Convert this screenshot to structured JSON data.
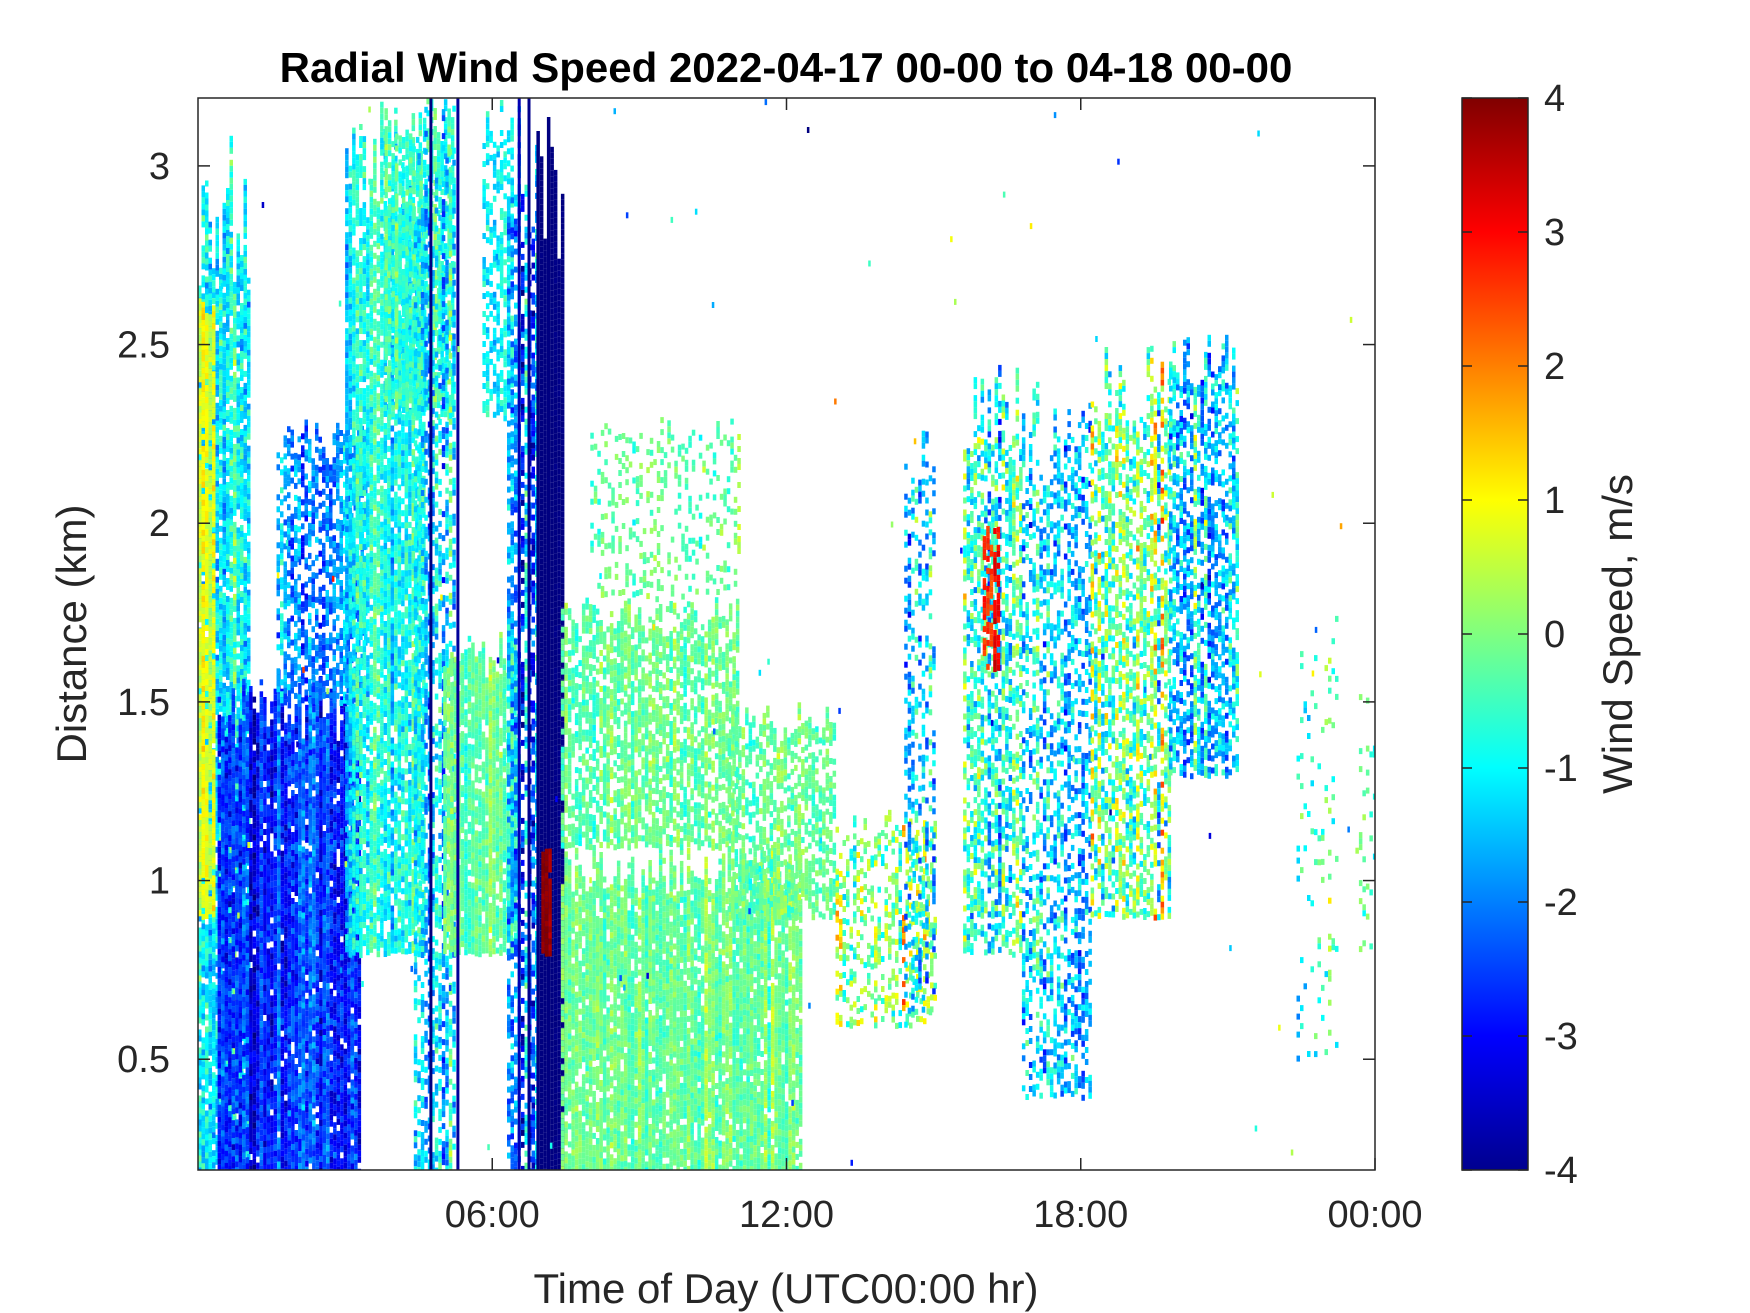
{
  "chart_data": {
    "type": "heatmap",
    "title": "Radial Wind Speed 2022-04-17 00-00 to 04-18 00-00",
    "xlabel": "Time of Day (UTC00:00 hr)",
    "ylabel": "Distance (km)",
    "colorbar_label": "Wind Speed, m/s",
    "colormap": "jet",
    "xlim": [
      0,
      24
    ],
    "ylim": [
      0.19,
      3.19
    ],
    "clim": [
      -4,
      4
    ],
    "x_ticks": [
      {
        "value": 6,
        "label": "06:00"
      },
      {
        "value": 12,
        "label": "12:00"
      },
      {
        "value": 18,
        "label": "18:00"
      },
      {
        "value": 24,
        "label": "00:00"
      }
    ],
    "y_ticks": [
      {
        "value": 0.5,
        "label": "0.5"
      },
      {
        "value": 1,
        "label": "1"
      },
      {
        "value": 1.5,
        "label": "1.5"
      },
      {
        "value": 2,
        "label": "2"
      },
      {
        "value": 2.5,
        "label": "2.5"
      },
      {
        "value": 3,
        "label": "3"
      }
    ],
    "c_ticks": [
      {
        "value": 4,
        "label": "4"
      },
      {
        "value": 3,
        "label": "3"
      },
      {
        "value": 2,
        "label": "2"
      },
      {
        "value": 1,
        "label": "1"
      },
      {
        "value": 0,
        "label": "0"
      },
      {
        "value": -1,
        "label": "-1"
      },
      {
        "value": -2,
        "label": "-2"
      },
      {
        "value": -3,
        "label": "-3"
      },
      {
        "value": -4,
        "label": "-4"
      }
    ],
    "regions": [
      {
        "x": [
          0.0,
          1.0
        ],
        "y": [
          0.19,
          3.1
        ],
        "value": -1.0,
        "spread": 1.2,
        "density": 0.9
      },
      {
        "x": [
          0.0,
          0.3
        ],
        "y": [
          0.9,
          2.8
        ],
        "value": 0.8,
        "spread": 0.6,
        "density": 0.9
      },
      {
        "x": [
          0.4,
          3.3
        ],
        "y": [
          0.19,
          1.6
        ],
        "value": -2.6,
        "spread": 1.0,
        "density": 0.95
      },
      {
        "x": [
          1.6,
          3.4
        ],
        "y": [
          1.5,
          2.3
        ],
        "value": -1.8,
        "spread": 1.0,
        "density": 0.6
      },
      {
        "x": [
          3.0,
          4.6
        ],
        "y": [
          0.8,
          3.19
        ],
        "value": -0.8,
        "spread": 1.0,
        "density": 0.85
      },
      {
        "x": [
          3.8,
          5.2
        ],
        "y": [
          2.3,
          3.19
        ],
        "value": -0.5,
        "spread": 0.8,
        "density": 0.75
      },
      {
        "x": [
          4.4,
          5.2
        ],
        "y": [
          0.19,
          3.19
        ],
        "value": -1.2,
        "spread": 1.3,
        "density": 0.55
      },
      {
        "x": [
          5.0,
          6.5
        ],
        "y": [
          0.8,
          1.7
        ],
        "value": -0.2,
        "spread": 0.6,
        "density": 0.9
      },
      {
        "x": [
          5.8,
          6.4
        ],
        "y": [
          2.3,
          3.19
        ],
        "value": -0.9,
        "spread": 0.8,
        "density": 0.55
      },
      {
        "x": [
          6.3,
          6.9
        ],
        "y": [
          0.19,
          3.19
        ],
        "value": -2.0,
        "spread": 1.5,
        "density": 0.65
      },
      {
        "x": [
          6.9,
          7.4
        ],
        "y": [
          0.19,
          3.19
        ],
        "value": -4.0,
        "spread": 0.1,
        "density": 1.0
      },
      {
        "x": [
          7.0,
          7.2
        ],
        "y": [
          0.8,
          1.1
        ],
        "value": 3.8,
        "spread": 0.3,
        "density": 0.9
      },
      {
        "x": [
          7.4,
          12.3
        ],
        "y": [
          0.19,
          1.1
        ],
        "value": -0.1,
        "spread": 0.6,
        "density": 0.9
      },
      {
        "x": [
          7.4,
          11.0
        ],
        "y": [
          1.1,
          1.8
        ],
        "value": -0.2,
        "spread": 0.6,
        "density": 0.7
      },
      {
        "x": [
          8.0,
          11.0
        ],
        "y": [
          1.8,
          2.3
        ],
        "value": -0.2,
        "spread": 0.6,
        "density": 0.25
      },
      {
        "x": [
          10.8,
          13.0
        ],
        "y": [
          0.9,
          1.5
        ],
        "value": -0.3,
        "spread": 0.6,
        "density": 0.6
      },
      {
        "x": [
          13.0,
          15.0
        ],
        "y": [
          0.6,
          1.2
        ],
        "value": 0.2,
        "spread": 1.6,
        "density": 0.4
      },
      {
        "x": [
          14.4,
          15.0
        ],
        "y": [
          0.6,
          2.3
        ],
        "value": -1.5,
        "spread": 1.5,
        "density": 0.35
      },
      {
        "x": [
          15.6,
          16.8
        ],
        "y": [
          0.8,
          2.45
        ],
        "value": -0.6,
        "spread": 1.8,
        "density": 0.6
      },
      {
        "x": [
          16.0,
          16.3
        ],
        "y": [
          1.6,
          2.0
        ],
        "value": 2.8,
        "spread": 0.5,
        "density": 0.6
      },
      {
        "x": [
          16.8,
          18.2
        ],
        "y": [
          0.4,
          2.4
        ],
        "value": -1.2,
        "spread": 1.6,
        "density": 0.45
      },
      {
        "x": [
          18.2,
          19.8
        ],
        "y": [
          0.9,
          2.5
        ],
        "value": -0.2,
        "spread": 1.8,
        "density": 0.6
      },
      {
        "x": [
          19.8,
          21.2
        ],
        "y": [
          1.3,
          2.55
        ],
        "value": -1.4,
        "spread": 1.6,
        "density": 0.6
      },
      {
        "x": [
          22.4,
          23.2
        ],
        "y": [
          0.5,
          1.8
        ],
        "value": -0.8,
        "spread": 1.2,
        "density": 0.12
      },
      {
        "x": [
          23.6,
          24.0
        ],
        "y": [
          0.8,
          1.6
        ],
        "value": -0.3,
        "spread": 0.8,
        "density": 0.1
      }
    ],
    "stripes": [
      {
        "x": 4.75,
        "y": [
          0.19,
          3.19
        ],
        "value": -4.0
      },
      {
        "x": 5.3,
        "y": [
          0.19,
          3.19
        ],
        "value": -3.8
      },
      {
        "x": 6.55,
        "y": [
          0.19,
          3.19
        ],
        "value": -3.6
      },
      {
        "x": 6.75,
        "y": [
          0.19,
          3.19
        ],
        "value": -3.9
      }
    ],
    "sparse": {
      "x": [
        0,
        24
      ],
      "y": [
        0.19,
        3.19
      ],
      "count": 90,
      "value": -1.0,
      "spread": 3.0
    }
  }
}
